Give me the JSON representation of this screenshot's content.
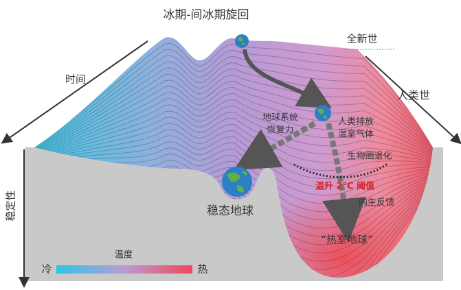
{
  "title": "冰期-间冰期旋回",
  "labels": {
    "holocene": "全新世",
    "time": "时间",
    "anthropocene": "人类世",
    "resilience": [
      "地球系统",
      "恢复力"
    ],
    "emissions": [
      "人类排放",
      "温室气体"
    ],
    "biosphere": "生物圈退化",
    "threshold": "温升 2°C 阈值",
    "feedback": "内生反馈",
    "stable": "稳态地球",
    "hothouse": "“热室地球”",
    "stability": "稳定性"
  },
  "legend": {
    "title": "温度",
    "cold": "冷",
    "hot": "热"
  }
}
